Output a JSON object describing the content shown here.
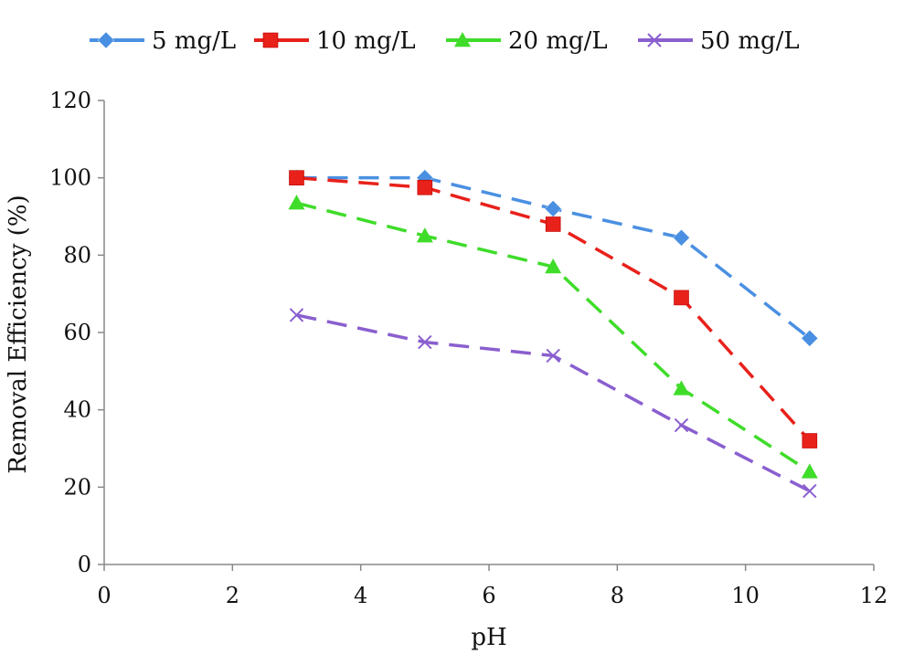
{
  "chart_data": {
    "type": "line",
    "title": "",
    "xlabel": "pH",
    "ylabel": "Removal Efficiency (%)",
    "xlim": [
      0,
      12
    ],
    "ylim": [
      0,
      120
    ],
    "xticks": [
      0,
      2,
      4,
      6,
      8,
      10,
      12
    ],
    "yticks": [
      0,
      20,
      40,
      60,
      80,
      100,
      120
    ],
    "x": [
      3,
      5,
      7,
      9,
      11
    ],
    "grid": false,
    "legend_position": "top",
    "series": [
      {
        "name": "5 mg/L",
        "values": [
          100,
          100,
          92,
          84.5,
          58.5
        ],
        "color": "#4a90e2",
        "marker": "diamond",
        "line_style": "dashed"
      },
      {
        "name": "10 mg/L",
        "values": [
          100,
          97.5,
          88,
          69,
          32
        ],
        "color": "#e8211a",
        "marker": "square",
        "line_style": "dashed"
      },
      {
        "name": "20 mg/L",
        "values": [
          93.5,
          85,
          77,
          45.5,
          24
        ],
        "color": "#3fdc2a",
        "marker": "triangle",
        "line_style": "dashed"
      },
      {
        "name": "50 mg/L",
        "values": [
          64.5,
          57.5,
          54,
          36,
          19
        ],
        "color": "#8a5fcf",
        "marker": "x",
        "line_style": "dashed"
      }
    ]
  }
}
